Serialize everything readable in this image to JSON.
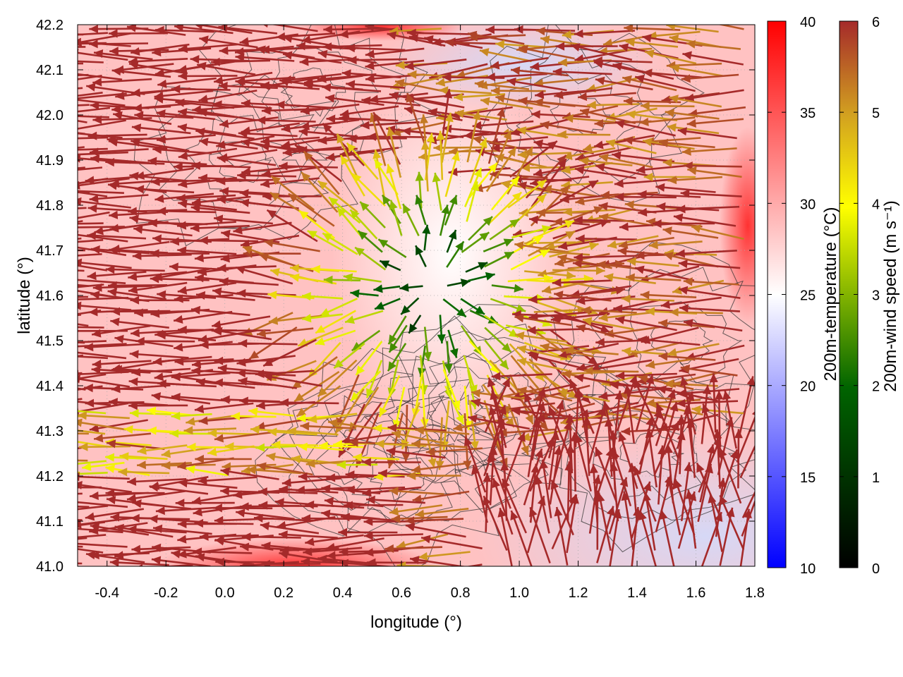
{
  "chart_data": {
    "type": "vector-field-heatmap",
    "xlabel": "longitude (°)",
    "ylabel": "latitude (°)",
    "xlim": [
      -0.5,
      1.8
    ],
    "ylim": [
      41.0,
      42.2
    ],
    "x_ticks": [
      -0.4,
      -0.2,
      0.0,
      0.2,
      0.4,
      0.6,
      0.8,
      1.0,
      1.2,
      1.4,
      1.6,
      1.8
    ],
    "x_tick_labels": [
      "-0.4",
      "-0.2",
      "0.0",
      "0.2",
      "0.4",
      "0.6",
      "0.8",
      "1.0",
      "1.2",
      "1.4",
      "1.6",
      "1.8"
    ],
    "y_ticks": [
      41.0,
      41.1,
      41.2,
      41.3,
      41.4,
      41.5,
      41.6,
      41.7,
      41.8,
      41.9,
      42.0,
      42.1,
      42.2
    ],
    "y_tick_labels": [
      "41.0",
      "41.1",
      "41.2",
      "41.3",
      "41.4",
      "41.5",
      "41.6",
      "41.7",
      "41.8",
      "41.9",
      "42.0",
      "42.1",
      "42.2"
    ],
    "grid": true,
    "colorbars": [
      {
        "name": "temperature",
        "label": "200m-temperature (°C)",
        "range": [
          10,
          40
        ],
        "ticks": [
          10,
          15,
          20,
          25,
          30,
          35,
          40
        ],
        "tick_labels": [
          "10",
          "15",
          "20",
          "25",
          "30",
          "35",
          "40"
        ],
        "colors": [
          "#0000ff",
          "#ffffff",
          "#ff0000"
        ]
      },
      {
        "name": "wind",
        "label": "200m-wind speed (m s⁻¹)",
        "range": [
          0,
          6
        ],
        "ticks": [
          0,
          1,
          2,
          3,
          4,
          5,
          6
        ],
        "tick_labels": [
          "0",
          "1",
          "2",
          "3",
          "4",
          "5",
          "6"
        ],
        "colors": [
          "#000000",
          "#006400",
          "#ffff00",
          "#d2a020",
          "#a52a2a"
        ]
      }
    ],
    "features": {
      "background_temperature_c": 30,
      "cool_area_southeast": {
        "lon_range": [
          0.9,
          1.8
        ],
        "lat_range": [
          41.0,
          41.2
        ],
        "temperature_c": 22
      },
      "warm_white_core": {
        "lon": 0.7,
        "lat": 41.7,
        "temperature_c": 26
      },
      "hot_spot_south": {
        "lon": 0.55,
        "lat": 41.02,
        "temperature_c": 38
      },
      "dominant_wind": "easterly, ~6 m s⁻¹ (arrows pointing west)",
      "divergence_center": {
        "lon": 0.7,
        "lat": 41.6
      },
      "southerly_flow_region": {
        "lon_range": [
          0.9,
          1.8
        ],
        "lat_range": [
          41.0,
          41.3
        ]
      }
    }
  }
}
